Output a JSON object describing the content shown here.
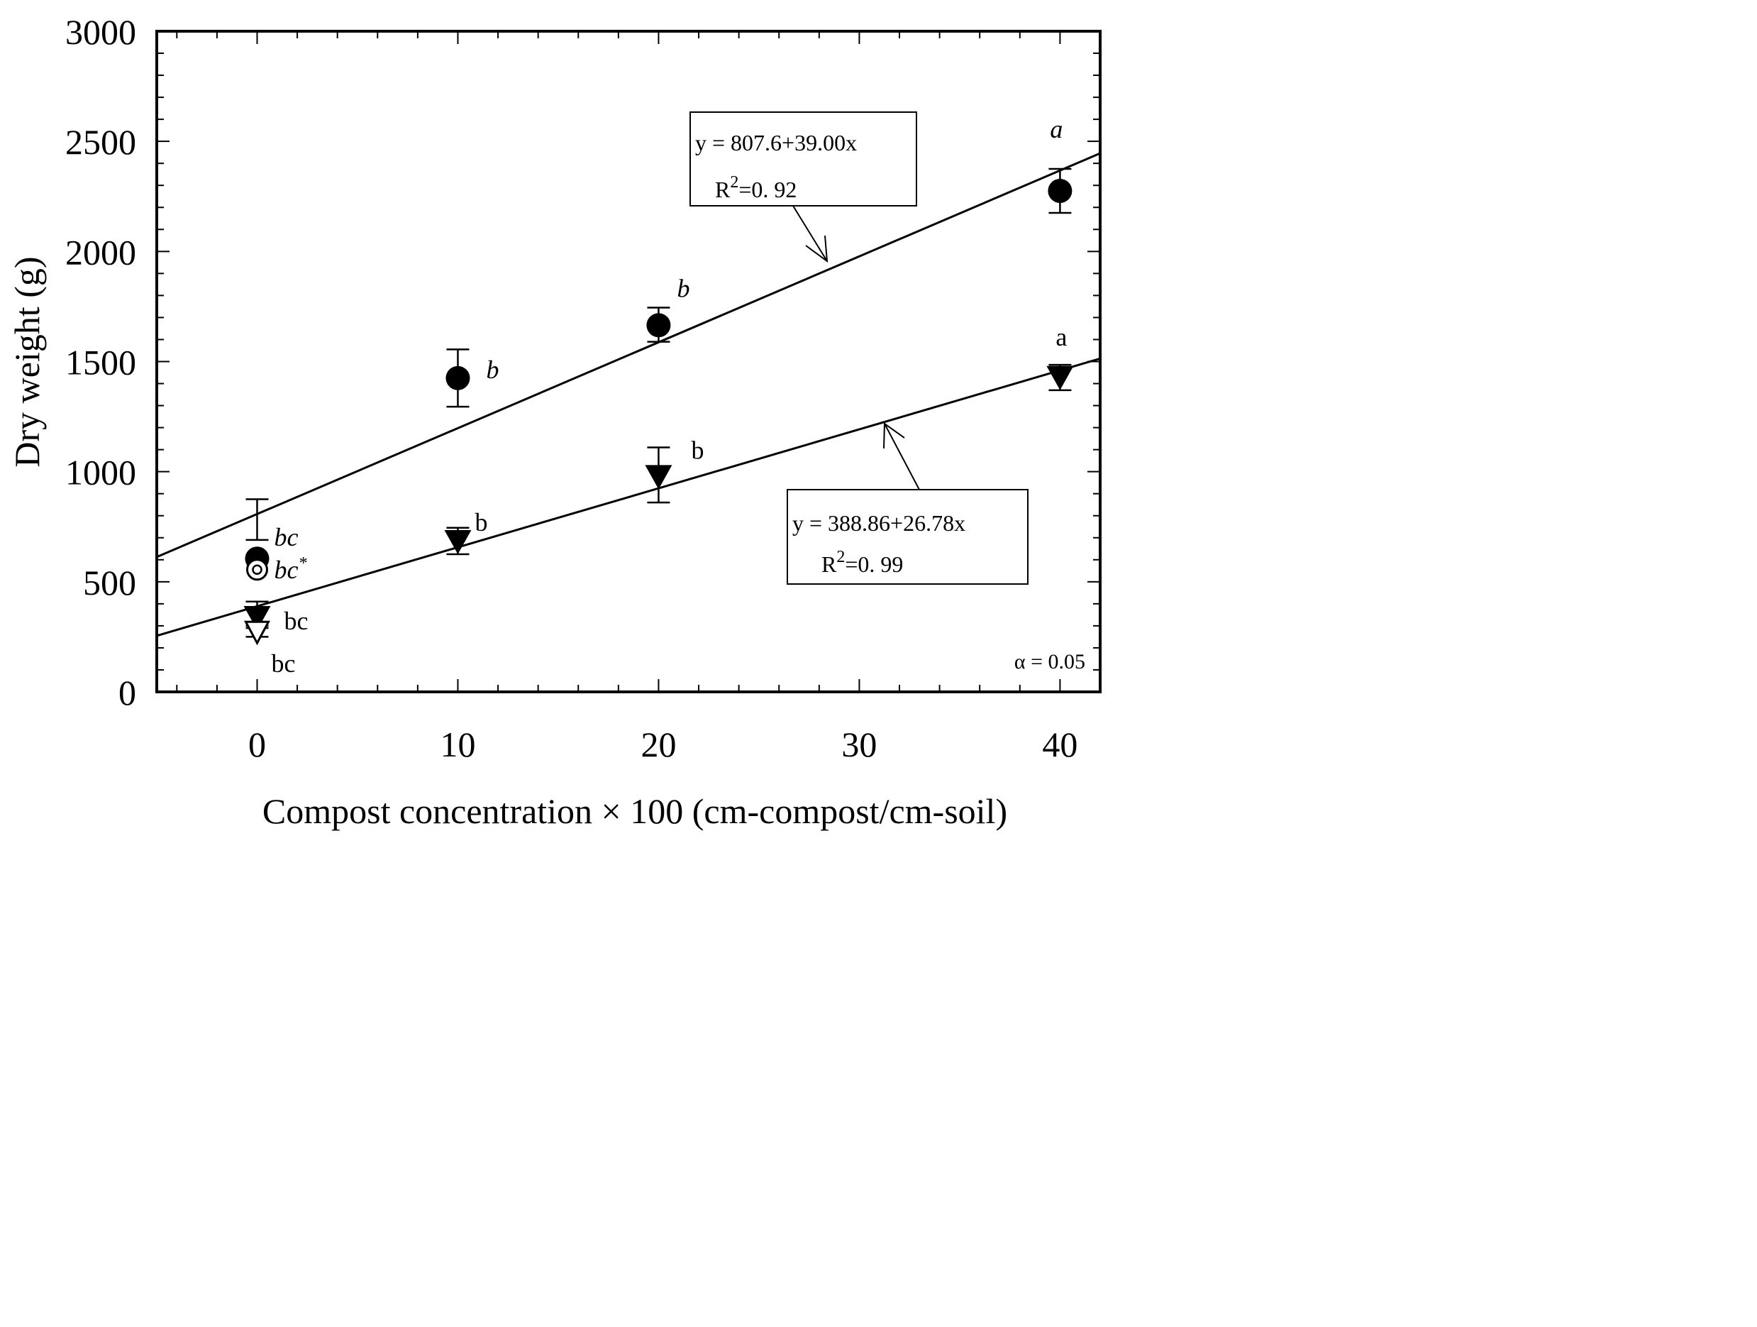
{
  "chart_data": {
    "type": "scatter",
    "xlabel": "Compost concentration × 100 (cm-compost/cm-soil)",
    "ylabel": "Dry weight (g)",
    "xlim": [
      -5,
      42
    ],
    "ylim": [
      0,
      3000
    ],
    "xticks": [
      0,
      10,
      20,
      30,
      40
    ],
    "yticks": [
      0,
      500,
      1000,
      1500,
      2000,
      2500,
      3000
    ],
    "xtick_labels": [
      "0",
      "10",
      "20",
      "30",
      "40"
    ],
    "ytick_labels": [
      "0",
      "500",
      "1000",
      "1500",
      "2000",
      "2500",
      "3000"
    ],
    "series": [
      {
        "name": "filled-circle",
        "marker": "filled-circle",
        "points": [
          {
            "x": 0,
            "y": 605,
            "err_low": 690,
            "err_high": 875,
            "label": "bc",
            "label_style": "italic"
          },
          {
            "x": 10,
            "y": 1425,
            "err_low": 1295,
            "err_high": 1555,
            "label": "b",
            "label_style": "italic"
          },
          {
            "x": 20,
            "y": 1665,
            "err_low": 1590,
            "err_high": 1745,
            "label": "b",
            "label_style": "italic"
          },
          {
            "x": 40,
            "y": 2275,
            "err_low": 2175,
            "err_high": 2375,
            "label": "a",
            "label_style": "italic"
          }
        ],
        "fit": {
          "intercept": 807.6,
          "slope": 39.0
        },
        "equation": "y = 807.6+39.00x",
        "r2_prefix": "R",
        "r2_sup": "2",
        "r2_value": "=0. 92"
      },
      {
        "name": "filled-triangle",
        "marker": "filled-triangle",
        "points": [
          {
            "x": 0,
            "y": 335,
            "err_low": 300,
            "err_high": 410,
            "label": "bc",
            "label_style": "normal"
          },
          {
            "x": 10,
            "y": 680,
            "err_low": 625,
            "err_high": 745,
            "label": "b",
            "label_style": "normal"
          },
          {
            "x": 20,
            "y": 975,
            "err_low": 860,
            "err_high": 1110,
            "label": "b",
            "label_style": "normal"
          },
          {
            "x": 40,
            "y": 1425,
            "err_low": 1370,
            "err_high": 1485,
            "label": "a",
            "label_style": "normal"
          }
        ],
        "fit": {
          "intercept": 388.86,
          "slope": 26.78
        },
        "equation": "y = 388.86+26.78x",
        "r2_prefix": "R",
        "r2_sup": "2",
        "r2_value": "=0. 99"
      },
      {
        "name": "open-circle",
        "marker": "open-circle",
        "points": [
          {
            "x": 0,
            "y": 555,
            "label": "bc",
            "label_style": "italic",
            "label_sup": "*"
          }
        ]
      },
      {
        "name": "open-triangle",
        "marker": "open-triangle",
        "points": [
          {
            "x": 0,
            "y": 270,
            "err_low": 250,
            "err_high": 290,
            "label": "bc",
            "label_style": "normal"
          }
        ]
      }
    ],
    "annotation": "α = 0.05"
  }
}
